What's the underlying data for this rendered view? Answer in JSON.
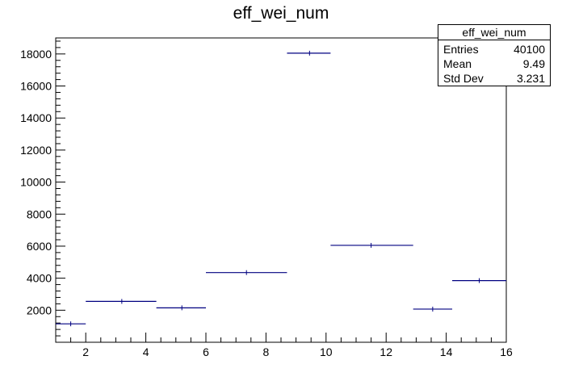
{
  "chart_data": {
    "type": "histogram",
    "title": "eff_wei_num",
    "xlabel": "",
    "ylabel": "",
    "xlim": [
      1,
      16
    ],
    "ylim": [
      0,
      19000
    ],
    "xticks": [
      2,
      4,
      6,
      8,
      10,
      12,
      14,
      16
    ],
    "yticks": [
      2000,
      4000,
      6000,
      8000,
      10000,
      12000,
      14000,
      16000,
      18000
    ],
    "bins": [
      {
        "x_low": 1.0,
        "x_high": 2.0,
        "x_center": 1.5,
        "y": 1150
      },
      {
        "x_low": 2.0,
        "x_high": 4.35,
        "x_center": 3.2,
        "y": 2550
      },
      {
        "x_low": 4.35,
        "x_high": 6.0,
        "x_center": 5.2,
        "y": 2150
      },
      {
        "x_low": 6.0,
        "x_high": 8.7,
        "x_center": 7.35,
        "y": 4350
      },
      {
        "x_low": 8.7,
        "x_high": 10.15,
        "x_center": 9.45,
        "y": 18050
      },
      {
        "x_low": 10.15,
        "x_high": 12.9,
        "x_center": 11.5,
        "y": 6050
      },
      {
        "x_low": 12.9,
        "x_high": 14.2,
        "x_center": 13.55,
        "y": 2070
      },
      {
        "x_low": 14.2,
        "x_high": 16.0,
        "x_center": 15.1,
        "y": 3850
      }
    ],
    "line_color": "#000080",
    "stats": {
      "title": "eff_wei_num",
      "entries_label": "Entries",
      "entries": "40100",
      "mean_label": "Mean",
      "mean": "9.49",
      "stddev_label": "Std Dev",
      "stddev": "3.231",
      "position": "top-right"
    }
  }
}
